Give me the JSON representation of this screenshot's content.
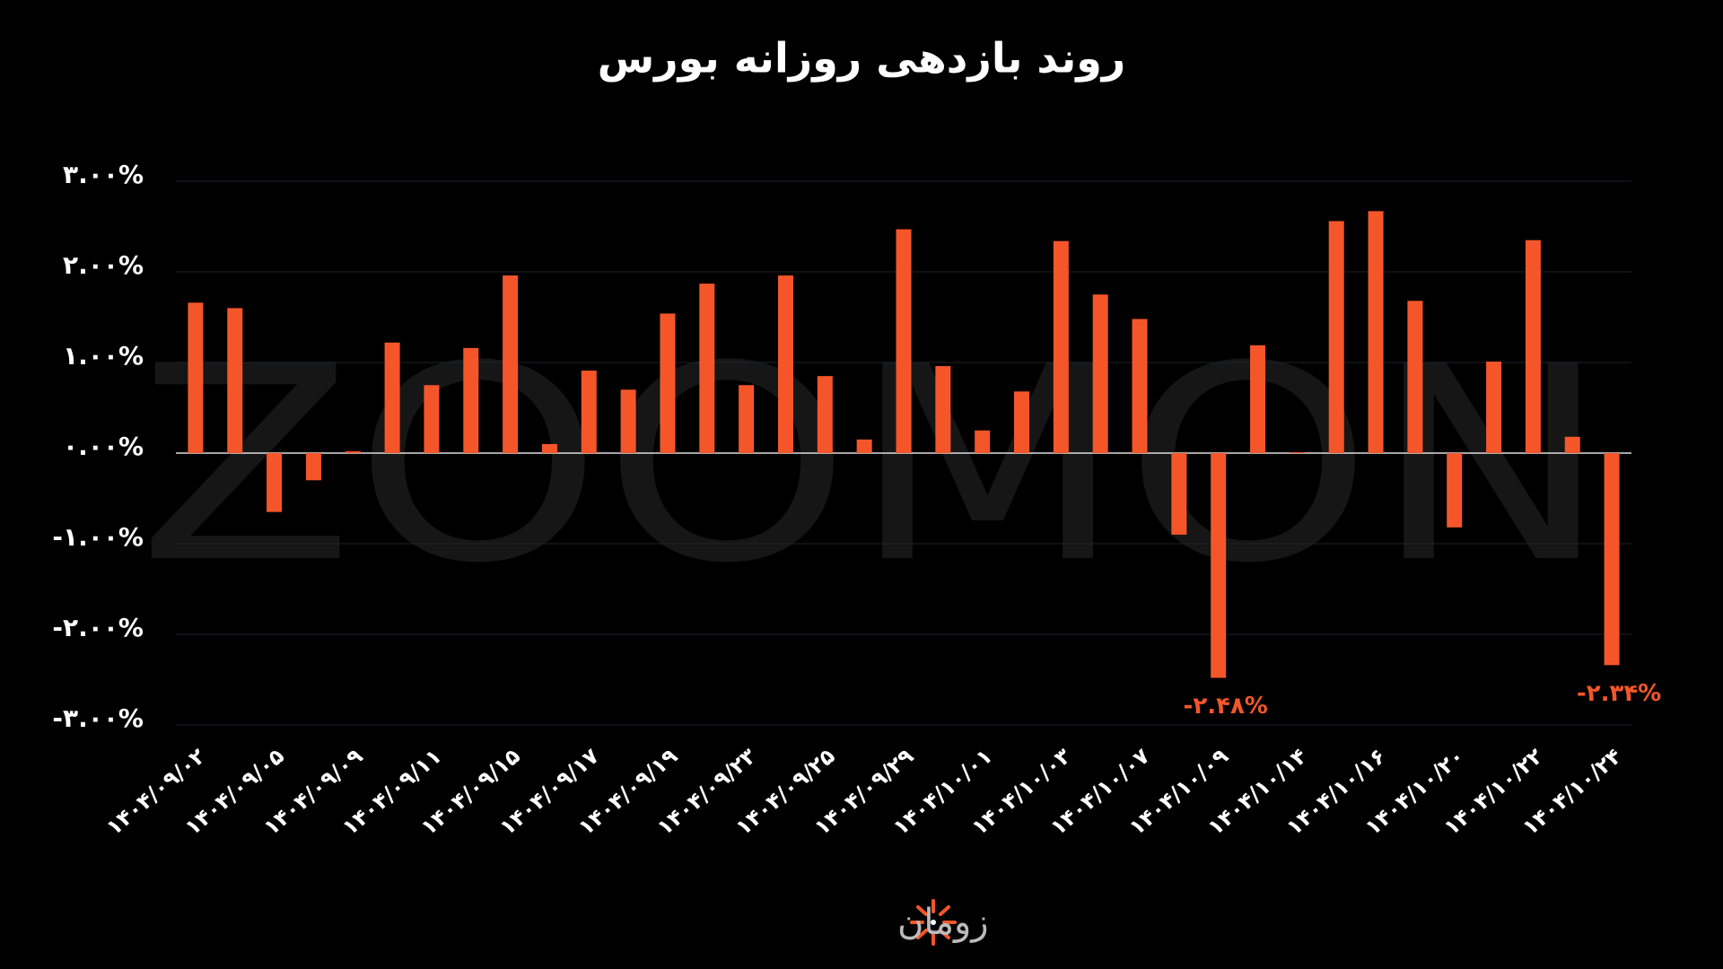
{
  "chart_data": {
    "type": "bar",
    "title": "روند بازدهی روزانه بورس",
    "watermark": "ZOOMON",
    "brand": "زومان",
    "color": "#f4562a",
    "grid": true,
    "ylim": [
      -3,
      3
    ],
    "yticks": [
      {
        "value": 3,
        "label": "۳.۰۰%"
      },
      {
        "value": 2,
        "label": "۲.۰۰%"
      },
      {
        "value": 1,
        "label": "۱.۰۰%"
      },
      {
        "value": 0,
        "label": "۰.۰۰%"
      },
      {
        "value": -1,
        "label": "-۱.۰۰%"
      },
      {
        "value": -2,
        "label": "-۲.۰۰%"
      },
      {
        "value": -3,
        "label": "-۳.۰۰%"
      }
    ],
    "categories": [
      "۱۴۰۴/۰۹/۰۲",
      null,
      "۱۴۰۴/۰۹/۰۵",
      null,
      "۱۴۰۴/۰۹/۰۹",
      null,
      "۱۴۰۴/۰۹/۱۱",
      null,
      "۱۴۰۴/۰۹/۱۵",
      null,
      "۱۴۰۴/۰۹/۱۷",
      null,
      "۱۴۰۴/۰۹/۱۹",
      null,
      "۱۴۰۴/۰۹/۲۳",
      null,
      "۱۴۰۴/۰۹/۲۵",
      null,
      "۱۴۰۴/۰۹/۲۹",
      null,
      "۱۴۰۴/۱۰/۰۱",
      null,
      "۱۴۰۴/۱۰/۰۳",
      null,
      "۱۴۰۴/۱۰/۰۷",
      null,
      "۱۴۰۴/۱۰/۰۹",
      null,
      "۱۴۰۴/۱۰/۱۴",
      null,
      "۱۴۰۴/۱۰/۱۶",
      null,
      "۱۴۰۴/۱۰/۲۰",
      null,
      "۱۴۰۴/۱۰/۲۲",
      null,
      "۱۴۰۴/۱۰/۲۴"
    ],
    "values": [
      1.66,
      1.6,
      -0.65,
      -0.3,
      0.02,
      1.22,
      0.75,
      1.16,
      1.96,
      0.1,
      0.91,
      0.7,
      1.54,
      1.87,
      0.75,
      1.96,
      0.85,
      0.15,
      2.47,
      0.96,
      0.25,
      0.68,
      2.34,
      1.75,
      1.48,
      -0.9,
      -2.48,
      1.19,
      0.01,
      2.56,
      2.67,
      1.68,
      -0.82,
      1.01,
      2.35,
      0.18,
      -2.34
    ],
    "value_labels": [
      null,
      null,
      null,
      null,
      null,
      null,
      null,
      null,
      null,
      null,
      null,
      null,
      null,
      null,
      null,
      null,
      null,
      null,
      null,
      null,
      null,
      null,
      null,
      null,
      null,
      null,
      "-۲.۴۸%",
      null,
      null,
      null,
      null,
      null,
      null,
      null,
      null,
      null,
      "-۲.۳۴%"
    ]
  }
}
